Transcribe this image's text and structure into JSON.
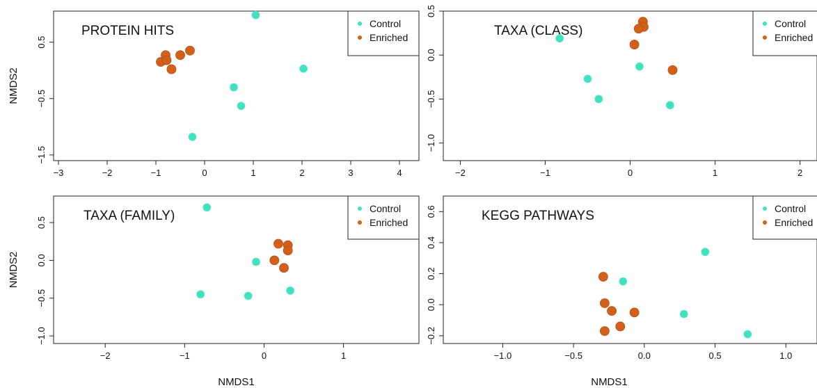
{
  "chart_data": [
    {
      "type": "scatter",
      "title": "PROTEIN HITS",
      "xlabel": "",
      "ylabel": "NMDS2",
      "xlim": [
        -3.1,
        4.4
      ],
      "ylim": [
        -1.6,
        1.05
      ],
      "xticks": [
        -3,
        -2,
        -1,
        0,
        1,
        2,
        3,
        4
      ],
      "xtick_labels": [
        "−3",
        "−2",
        "−1",
        "0",
        "1",
        "2",
        "3",
        "4"
      ],
      "yticks": [
        -1.5,
        -0.5,
        0.5
      ],
      "ytick_labels": [
        "−1.5",
        "−0.5",
        "0.5"
      ],
      "legend": {
        "position": "top-right",
        "entries": [
          "Control",
          "Enriched"
        ]
      },
      "series": [
        {
          "name": "Control",
          "color": "#40e0c0",
          "points": [
            [
              1.05,
              0.98
            ],
            [
              0.6,
              -0.3
            ],
            [
              0.75,
              -0.63
            ],
            [
              -0.25,
              -1.18
            ],
            [
              2.03,
              0.03
            ]
          ]
        },
        {
          "name": "Enriched",
          "color": "#d2601a",
          "points": [
            [
              -0.3,
              0.35
            ],
            [
              -0.5,
              0.27
            ],
            [
              -0.8,
              0.27
            ],
            [
              -0.9,
              0.15
            ],
            [
              -0.78,
              0.18
            ],
            [
              -0.68,
              0.02
            ]
          ]
        }
      ]
    },
    {
      "type": "scatter",
      "title": "TAXA (CLASS)",
      "xlabel": "",
      "ylabel": "",
      "xlim": [
        -2.2,
        2.2
      ],
      "ylim": [
        -1.2,
        0.5
      ],
      "xticks": [
        -2,
        -1,
        0,
        1,
        2
      ],
      "xtick_labels": [
        "−2",
        "−1",
        "0",
        "1",
        "2"
      ],
      "yticks": [
        -1.0,
        -0.5,
        0.0,
        0.5
      ],
      "ytick_labels": [
        "−1.0",
        "−0.5",
        "0.0",
        "0.5"
      ],
      "legend": {
        "position": "top-right",
        "entries": [
          "Control",
          "Enriched"
        ]
      },
      "series": [
        {
          "name": "Control",
          "color": "#40e0c0",
          "points": [
            [
              -0.83,
              0.19
            ],
            [
              -0.5,
              -0.27
            ],
            [
              -0.37,
              -0.5
            ],
            [
              0.11,
              -0.13
            ],
            [
              0.47,
              -0.57
            ]
          ]
        },
        {
          "name": "Enriched",
          "color": "#d2601a",
          "points": [
            [
              0.15,
              0.38
            ],
            [
              0.16,
              0.32
            ],
            [
              0.1,
              0.3
            ],
            [
              0.05,
              0.12
            ],
            [
              0.5,
              -0.17
            ]
          ]
        }
      ]
    },
    {
      "type": "scatter",
      "title": "TAXA (FAMILY)",
      "xlabel": "NMDS1",
      "ylabel": "NMDS2",
      "xlim": [
        -2.65,
        1.95
      ],
      "ylim": [
        -1.1,
        0.85
      ],
      "xticks": [
        -2,
        -1,
        0,
        1
      ],
      "xtick_labels": [
        "−2",
        "−1",
        "0",
        "1"
      ],
      "yticks": [
        -1.0,
        -0.5,
        0.0,
        0.5
      ],
      "ytick_labels": [
        "−1.0",
        "−0.5",
        "0.0",
        "0.5"
      ],
      "legend": {
        "position": "top-right",
        "entries": [
          "Control",
          "Enriched"
        ]
      },
      "series": [
        {
          "name": "Control",
          "color": "#40e0c0",
          "points": [
            [
              -0.72,
              0.7
            ],
            [
              -0.1,
              -0.02
            ],
            [
              -0.2,
              -0.47
            ],
            [
              0.33,
              -0.4
            ],
            [
              -0.8,
              -0.45
            ]
          ]
        },
        {
          "name": "Enriched",
          "color": "#d2601a",
          "points": [
            [
              0.18,
              0.22
            ],
            [
              0.3,
              0.2
            ],
            [
              0.3,
              0.13
            ],
            [
              0.13,
              0.0
            ],
            [
              0.25,
              -0.1
            ]
          ]
        }
      ]
    },
    {
      "type": "scatter",
      "title": "KEGG PATHWAYS",
      "xlabel": "NMDS1",
      "ylabel": "",
      "xlim": [
        -1.42,
        1.22
      ],
      "ylim": [
        -0.25,
        0.7
      ],
      "xticks": [
        -1.0,
        -0.5,
        0.0,
        0.5,
        1.0
      ],
      "xtick_labels": [
        "−1.0",
        "−0.5",
        "0.0",
        "0.5",
        "1.0"
      ],
      "yticks": [
        -0.2,
        0.0,
        0.2,
        0.4,
        0.6
      ],
      "ytick_labels": [
        "−0.2",
        "0.0",
        "0.2",
        "0.4",
        "0.6"
      ],
      "legend": {
        "position": "top-right",
        "entries": [
          "Control",
          "Enriched"
        ]
      },
      "series": [
        {
          "name": "Control",
          "color": "#40e0c0",
          "points": [
            [
              0.43,
              0.34
            ],
            [
              -0.15,
              0.15
            ],
            [
              0.28,
              -0.06
            ],
            [
              0.73,
              -0.19
            ]
          ]
        },
        {
          "name": "Enriched",
          "color": "#d2601a",
          "points": [
            [
              -0.29,
              0.18
            ],
            [
              -0.28,
              0.01
            ],
            [
              -0.23,
              -0.04
            ],
            [
              -0.07,
              -0.05
            ],
            [
              -0.17,
              -0.14
            ],
            [
              -0.28,
              -0.17
            ]
          ]
        }
      ]
    }
  ]
}
